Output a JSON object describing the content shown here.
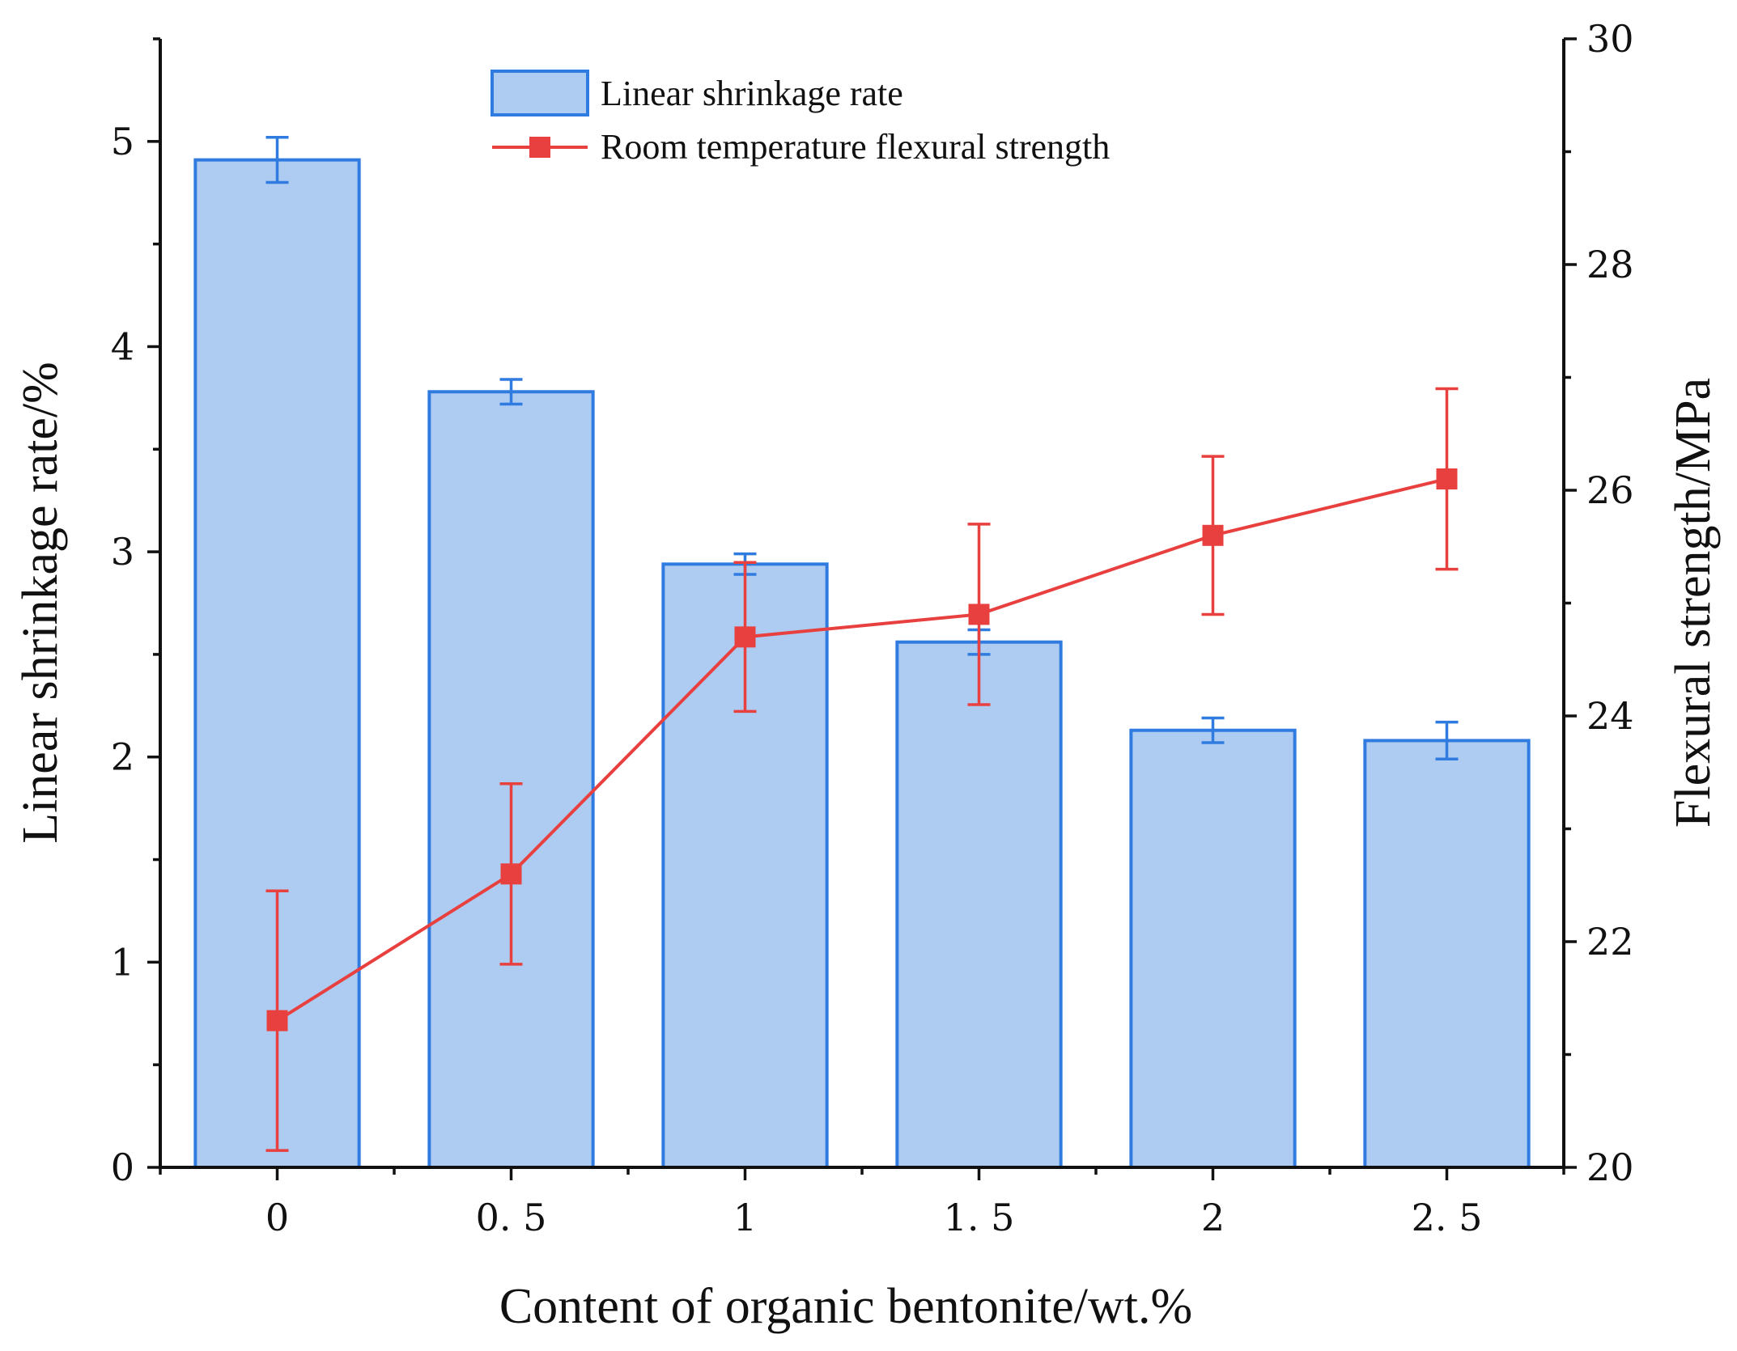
{
  "chart_data": {
    "type": "bar+line",
    "title": "",
    "xlabel": "Content of organic bentonite/wt.%",
    "ylabel_left": "Linear shrinkage rate/%",
    "ylabel_right": "Flexural strength/MPa",
    "categories": [
      "0",
      "0. 5",
      "1",
      "1. 5",
      "2",
      "2. 5"
    ],
    "x_values": [
      0,
      0.5,
      1,
      1.5,
      2,
      2.5
    ],
    "xlim": [
      -0.25,
      2.75
    ],
    "ylim_left": [
      0,
      5.5
    ],
    "ylim_right": [
      20,
      30
    ],
    "left_ticks": [
      "0",
      "1",
      "2",
      "3",
      "4",
      "5"
    ],
    "right_ticks": [
      "20",
      "22",
      "24",
      "26",
      "28",
      "30"
    ],
    "series": [
      {
        "name": "Linear shrinkage rate",
        "kind": "bar",
        "axis": "left",
        "values": [
          4.91,
          3.78,
          2.94,
          2.56,
          2.13,
          2.08
        ],
        "errors": [
          0.11,
          0.06,
          0.05,
          0.06,
          0.06,
          0.09
        ],
        "fill": "#aecbf2",
        "stroke": "#2f7be0"
      },
      {
        "name": "Room temperature flexural strength",
        "kind": "line",
        "axis": "right",
        "values": [
          21.3,
          22.6,
          24.7,
          24.9,
          25.6,
          26.1
        ],
        "errors": [
          1.15,
          0.8,
          0.66,
          0.8,
          0.7,
          0.8
        ],
        "color": "#e8403f"
      }
    ],
    "legend": "top-center",
    "grid": false
  }
}
